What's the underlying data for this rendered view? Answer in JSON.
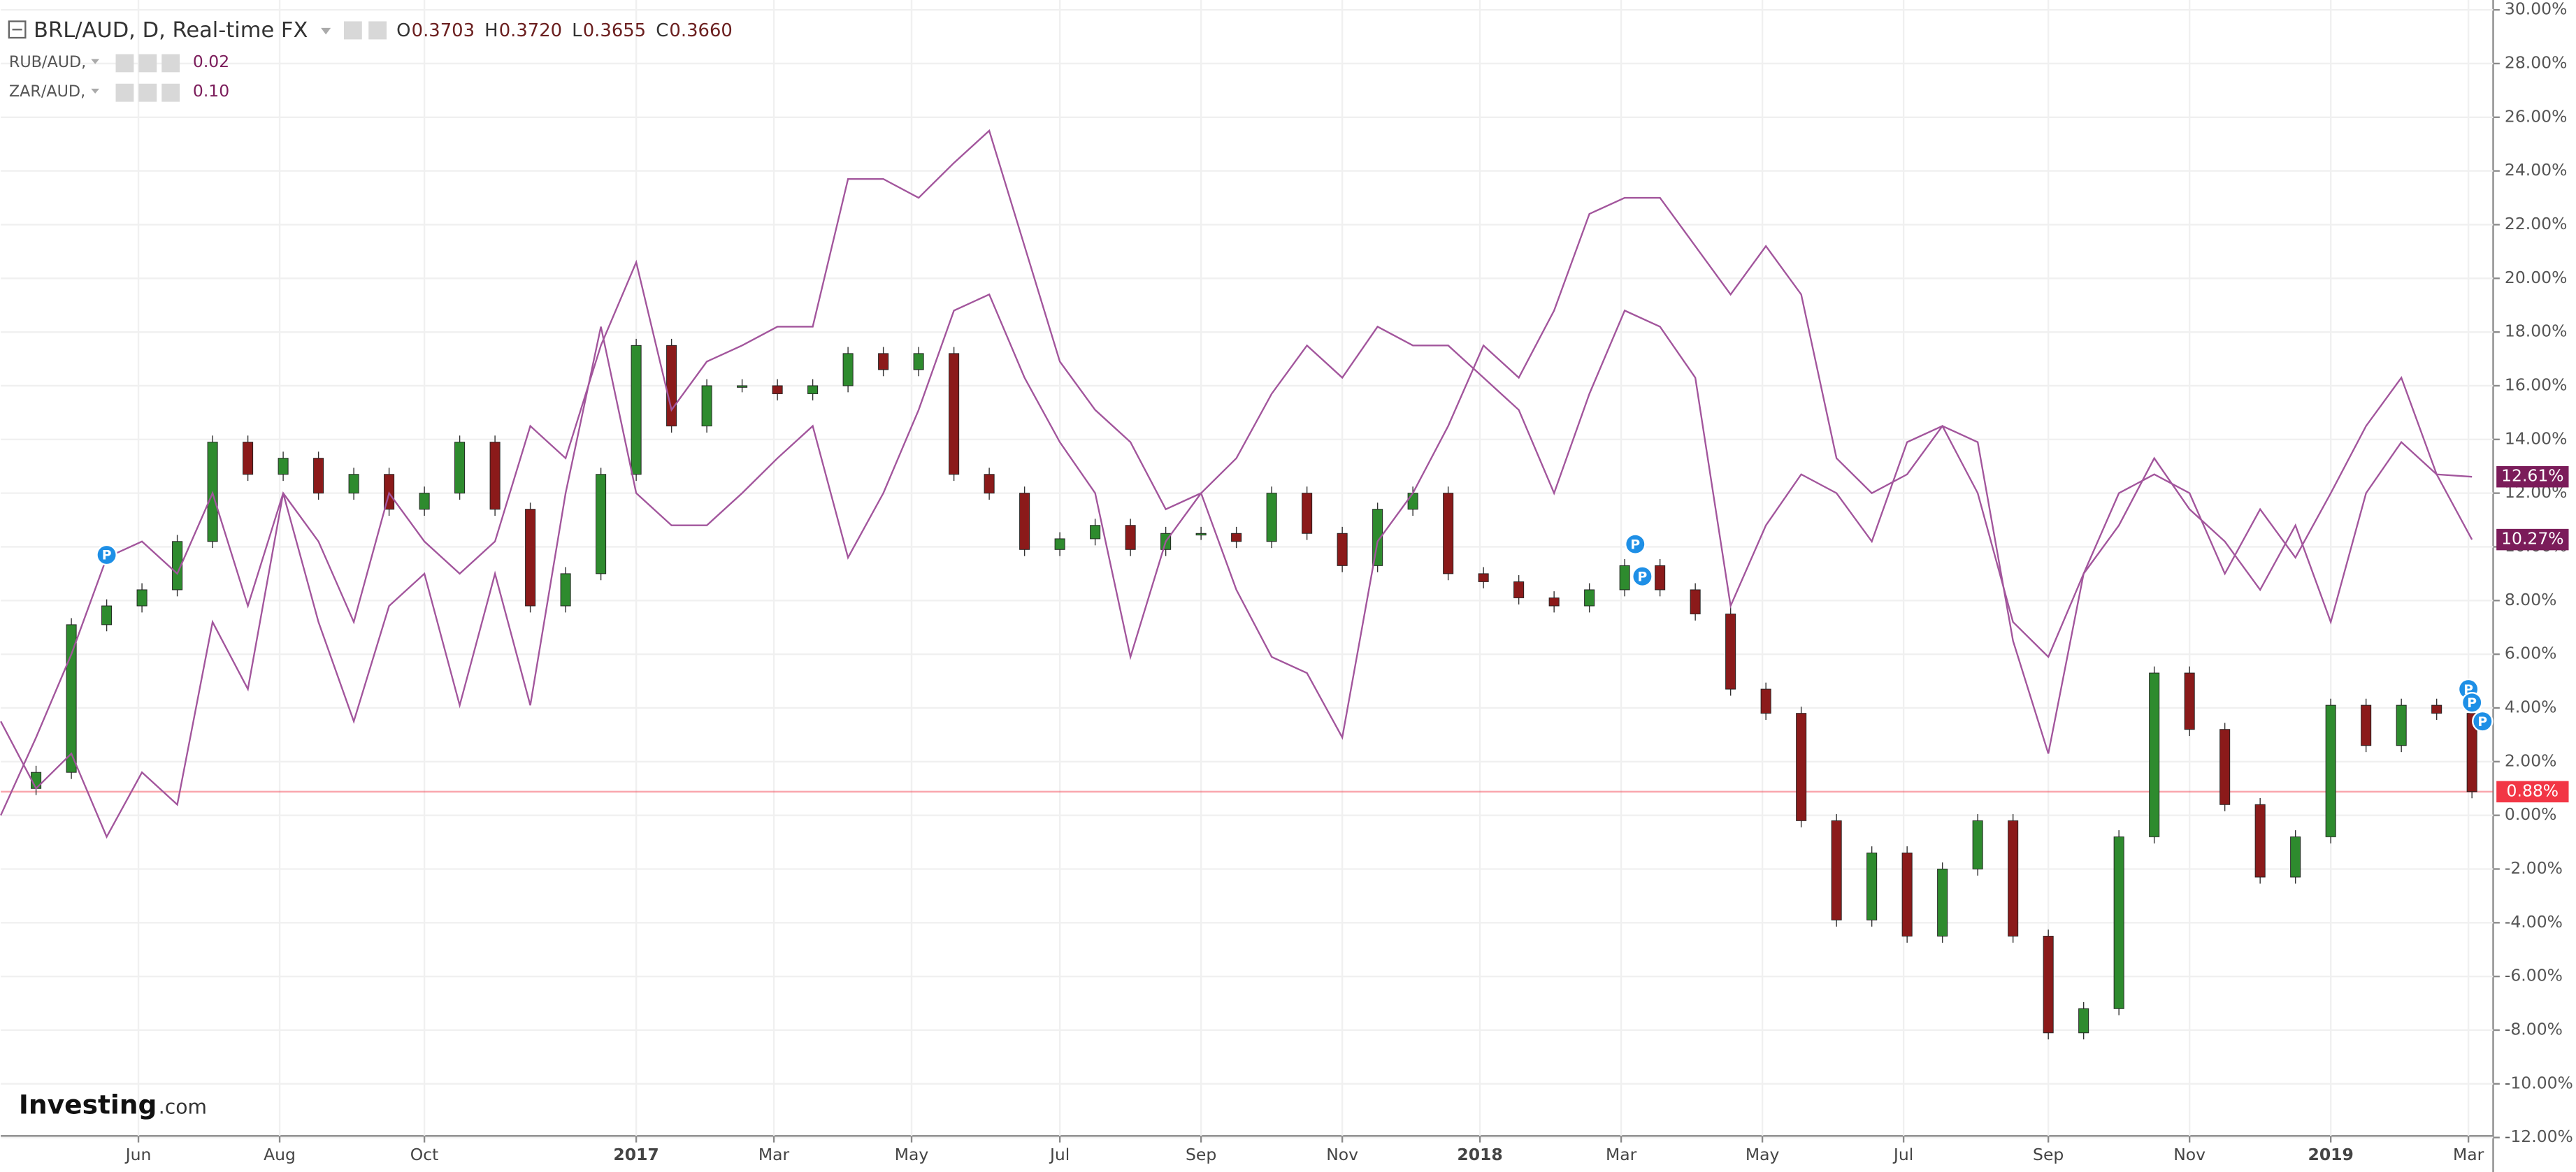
{
  "chart_data": {
    "type": "line",
    "header": {
      "title": "BRL/AUD, D, Real-time FX",
      "ohlc": [
        {
          "label": "O",
          "value": "0.3703"
        },
        {
          "label": "H",
          "value": "0.3720"
        },
        {
          "label": "L",
          "value": "0.3655"
        },
        {
          "label": "C",
          "value": "0.3660"
        }
      ]
    },
    "watermark": {
      "brand": "Investing",
      "suffix": ".com"
    },
    "xlim": [
      0,
      70.6
    ],
    "xticks": [
      {
        "value": 3.9,
        "label": "Jun"
      },
      {
        "value": 7.9,
        "label": "Aug"
      },
      {
        "value": 12,
        "label": "Oct"
      },
      {
        "value": 18,
        "label": "2017",
        "bold": true
      },
      {
        "value": 21.9,
        "label": "Mar"
      },
      {
        "value": 25.8,
        "label": "May"
      },
      {
        "value": 30,
        "label": "Jul"
      },
      {
        "value": 34,
        "label": "Sep"
      },
      {
        "value": 38,
        "label": "Nov"
      },
      {
        "value": 41.9,
        "label": "2018",
        "bold": true
      },
      {
        "value": 45.9,
        "label": "Mar"
      },
      {
        "value": 49.9,
        "label": "May"
      },
      {
        "value": 53.9,
        "label": "Jul"
      },
      {
        "value": 58,
        "label": "Sep"
      },
      {
        "value": 62,
        "label": "Nov"
      },
      {
        "value": 66,
        "label": "2019",
        "bold": true
      },
      {
        "value": 69.9,
        "label": "Mar"
      }
    ],
    "ylim": [
      -12,
      30
    ],
    "yticks": [
      {
        "value": -12,
        "label": "-12.00%"
      },
      {
        "value": -10,
        "label": "-10.00%"
      },
      {
        "value": -8,
        "label": "-8.00%"
      },
      {
        "value": -6,
        "label": "-6.00%"
      },
      {
        "value": -4,
        "label": "-4.00%"
      },
      {
        "value": -2,
        "label": "-2.00%"
      },
      {
        "value": 0,
        "label": "0.00%"
      },
      {
        "value": 2,
        "label": "2.00%"
      },
      {
        "value": 4,
        "label": "4.00%"
      },
      {
        "value": 6,
        "label": "6.00%"
      },
      {
        "value": 8,
        "label": "8.00%"
      },
      {
        "value": 10,
        "label": "10.00%"
      },
      {
        "value": 12,
        "label": "12.00%"
      },
      {
        "value": 14,
        "label": "14.00%"
      },
      {
        "value": 16,
        "label": "16.00%"
      },
      {
        "value": 18,
        "label": "18.00%"
      },
      {
        "value": 20,
        "label": "20.00%"
      },
      {
        "value": 22,
        "label": "22.00%"
      },
      {
        "value": 24,
        "label": "24.00%"
      },
      {
        "value": 26,
        "label": "26.00%"
      },
      {
        "value": 28,
        "label": "28.00%"
      },
      {
        "value": 30,
        "label": "30.00%"
      }
    ],
    "grid": true,
    "series": [
      {
        "name": "BRL/AUD",
        "style": "candle",
        "color": "#2e8b2e",
        "down_color": "#8b1a1a",
        "values": [
          1,
          1.6,
          7.1,
          7.8,
          8.4,
          10.2,
          13.9,
          12.7,
          13.3,
          12,
          12.7,
          11.4,
          12,
          13.9,
          11.4,
          7.8,
          9,
          12.7,
          17.5,
          14.5,
          16,
          16,
          15.7,
          16,
          17.2,
          16.6,
          17.2,
          12.7,
          12,
          9.9,
          10.3,
          10.8,
          9.9,
          10.5,
          10.5,
          10.2,
          12,
          10.5,
          9.3,
          11.4,
          12,
          9,
          8.7,
          8.1,
          7.8,
          8.4,
          9.3,
          8.4,
          7.5,
          4.7,
          3.8,
          -0.2,
          -3.9,
          -1.4,
          -4.5,
          -2,
          -0.2,
          -4.5,
          -8.1,
          -7.2,
          -0.8,
          5.3,
          3.2,
          0.4,
          -2.3,
          -0.8,
          4.1,
          2.6,
          4.1,
          3.8,
          0.88
        ],
        "last": {
          "value": 0.88,
          "label": "0.88%",
          "color": "#f23645"
        }
      },
      {
        "name": "RUB/AUD,",
        "legend_value": "0.02",
        "style": "line",
        "color": "#a2559c",
        "values": [
          0,
          2.9,
          6,
          9.6,
          10.2,
          9,
          12,
          7.8,
          12,
          10.2,
          7.2,
          12,
          10.2,
          9,
          10.2,
          14.5,
          13.3,
          17.5,
          20.6,
          15.1,
          16.9,
          17.5,
          18.2,
          18.2,
          23.7,
          23.7,
          23,
          24.3,
          25.5,
          21.2,
          16.9,
          15.1,
          13.9,
          11.4,
          12,
          8.4,
          5.9,
          5.3,
          2.9,
          10.2,
          12,
          14.5,
          17.5,
          16.3,
          18.8,
          22.4,
          23,
          23,
          21.2,
          19.4,
          21.2,
          19.4,
          13.3,
          12,
          12.7,
          14.5,
          13.9,
          6.5,
          2.3,
          9,
          12,
          12.7,
          12,
          9,
          11.4,
          9.6,
          12,
          14.5,
          16.3,
          12.7,
          12.61
        ],
        "last": {
          "value": 12.61,
          "label": "12.61%",
          "color": "#7b1c5a"
        }
      },
      {
        "name": "ZAR/AUD,",
        "legend_value": "0.10",
        "style": "line",
        "color": "#a2559c",
        "values": [
          3.5,
          1,
          2.3,
          -0.8,
          1.6,
          0.4,
          7.2,
          4.7,
          12,
          7.2,
          3.5,
          7.8,
          9,
          4.1,
          9,
          4.1,
          12,
          18.2,
          12,
          10.8,
          10.8,
          12,
          13.3,
          14.5,
          9.6,
          12,
          15.1,
          18.8,
          19.4,
          16.3,
          13.9,
          12,
          5.9,
          10.2,
          12,
          13.3,
          15.7,
          17.5,
          16.3,
          18.2,
          17.5,
          17.5,
          16.3,
          15.1,
          12,
          15.7,
          18.8,
          18.2,
          16.3,
          7.8,
          10.8,
          12.7,
          12,
          10.2,
          13.9,
          14.5,
          12,
          7.2,
          5.9,
          9,
          10.8,
          13.3,
          11.4,
          10.2,
          8.4,
          10.8,
          7.2,
          12,
          13.9,
          12.7,
          10.27
        ],
        "last": {
          "value": 10.27,
          "label": "10.27%",
          "color": "#7b1c5a"
        }
      }
    ],
    "markers": [
      {
        "x": 3.0,
        "value": 9.7,
        "label": "P"
      },
      {
        "x": 46.3,
        "value": 10.1,
        "label": "P"
      },
      {
        "x": 46.5,
        "value": 8.9,
        "label": "P"
      },
      {
        "x": 69.9,
        "value": 4.7,
        "label": "P"
      },
      {
        "x": 70.0,
        "value": 4.2,
        "label": "P"
      },
      {
        "x": 70.3,
        "value": 3.5,
        "label": "P"
      }
    ]
  }
}
